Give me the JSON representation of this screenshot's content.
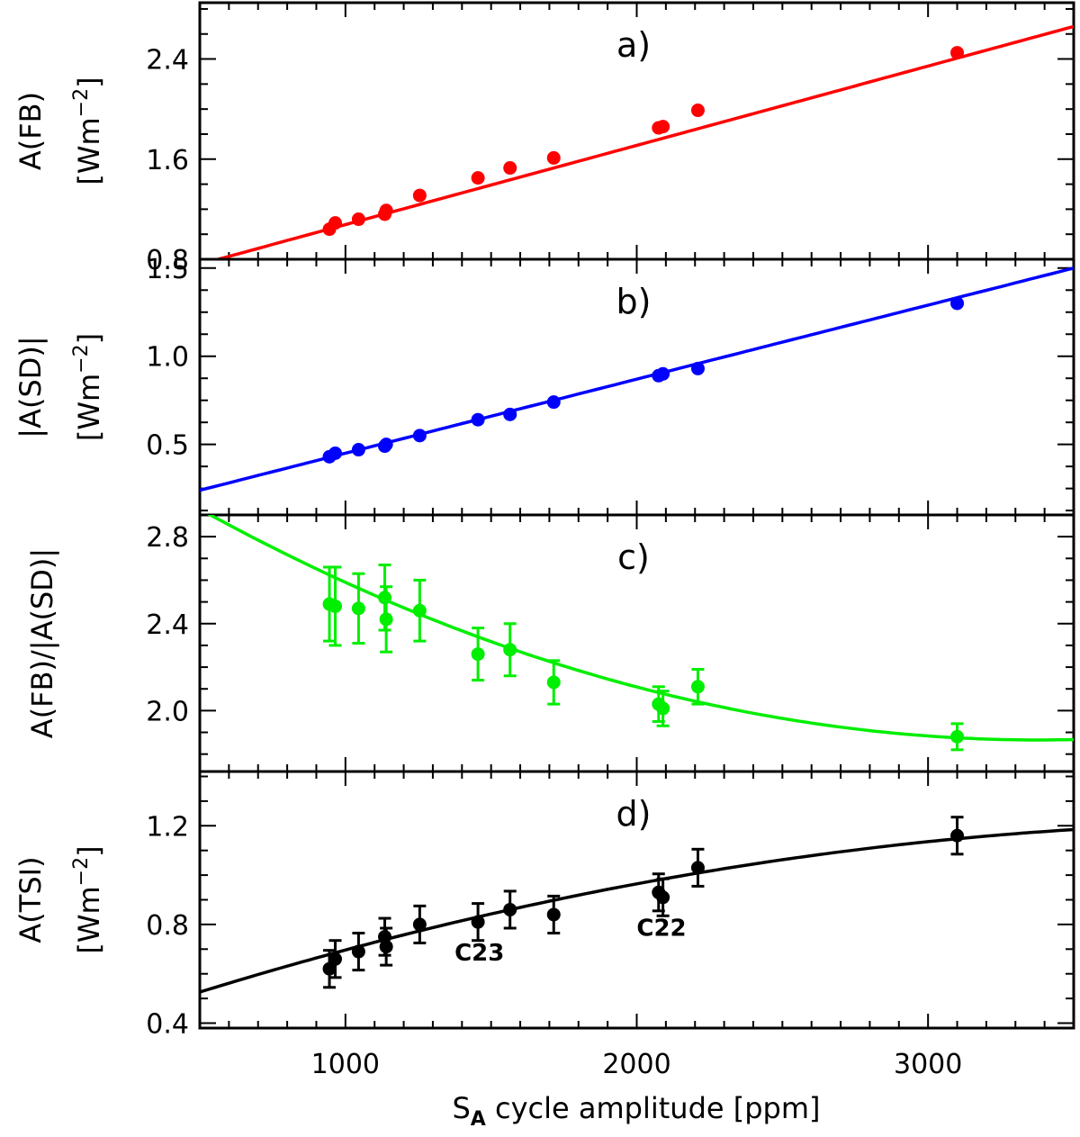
{
  "chart_data": {
    "type": "scatter",
    "xlabel": "S",
    "xlabel_sub": "A",
    "xlabel_rest": " cycle amplitude [ppm]",
    "xlim": [
      500,
      3500
    ],
    "xticks": [
      1000,
      2000,
      3000
    ],
    "panels": [
      {
        "tag": "a)",
        "ylabel": "A(FB)",
        "yunit_prefix": "[Wm",
        "yunit_exp": "−2",
        "yunit_suffix": "]",
        "color": "#ff0000",
        "ylim": [
          0.8,
          2.85
        ],
        "yticks": [
          0.8,
          1.6,
          2.4
        ],
        "ytick_labels": [
          "0.8",
          "1.6",
          "2.4"
        ],
        "fit": {
          "form": "linear",
          "points": [
            [
              500,
              0.76
            ],
            [
              3500,
              2.66
            ]
          ]
        },
        "points": [
          {
            "x": 945,
            "y": 1.04
          },
          {
            "x": 965,
            "y": 1.09
          },
          {
            "x": 1045,
            "y": 1.12
          },
          {
            "x": 1135,
            "y": 1.16
          },
          {
            "x": 1140,
            "y": 1.19
          },
          {
            "x": 1255,
            "y": 1.31
          },
          {
            "x": 1455,
            "y": 1.45
          },
          {
            "x": 1565,
            "y": 1.53
          },
          {
            "x": 1715,
            "y": 1.61
          },
          {
            "x": 2075,
            "y": 1.85
          },
          {
            "x": 2090,
            "y": 1.86
          },
          {
            "x": 2210,
            "y": 1.99
          },
          {
            "x": 3100,
            "y": 2.45
          }
        ]
      },
      {
        "tag": "b)",
        "ylabel": "|A(SD)|",
        "yunit_prefix": "[Wm",
        "yunit_exp": "−2",
        "yunit_suffix": "]",
        "color": "#0000ff",
        "ylim": [
          0.1,
          1.55
        ],
        "yticks": [
          0.5,
          1.0,
          1.5
        ],
        "ytick_labels": [
          "0.5",
          "1.0",
          "1.5"
        ],
        "fit": {
          "form": "linear",
          "points": [
            [
              500,
              0.24
            ],
            [
              3500,
              1.5
            ]
          ]
        },
        "points": [
          {
            "x": 945,
            "y": 0.43
          },
          {
            "x": 965,
            "y": 0.45
          },
          {
            "x": 1045,
            "y": 0.47
          },
          {
            "x": 1135,
            "y": 0.49
          },
          {
            "x": 1140,
            "y": 0.5
          },
          {
            "x": 1255,
            "y": 0.55
          },
          {
            "x": 1455,
            "y": 0.64
          },
          {
            "x": 1565,
            "y": 0.67
          },
          {
            "x": 1715,
            "y": 0.74
          },
          {
            "x": 2075,
            "y": 0.89
          },
          {
            "x": 2090,
            "y": 0.9
          },
          {
            "x": 2210,
            "y": 0.93
          },
          {
            "x": 3100,
            "y": 1.3
          }
        ]
      },
      {
        "tag": "c)",
        "ylabel": "A(FB)/|A(SD)|",
        "color": "#00ee00",
        "ylim": [
          1.72,
          2.9
        ],
        "yticks": [
          2.0,
          2.4,
          2.8
        ],
        "ytick_labels": [
          "2.0",
          "2.4",
          "2.8"
        ],
        "fit": {
          "form": "quadratic",
          "vertex_x": 3380,
          "vertex_y": 1.865,
          "coef": 1.28e-07
        },
        "points": [
          {
            "x": 945,
            "y": 2.49,
            "err": 0.17
          },
          {
            "x": 965,
            "y": 2.48,
            "err": 0.18
          },
          {
            "x": 1045,
            "y": 2.47,
            "err": 0.16
          },
          {
            "x": 1135,
            "y": 2.52,
            "err": 0.15
          },
          {
            "x": 1140,
            "y": 2.42,
            "err": 0.15
          },
          {
            "x": 1255,
            "y": 2.46,
            "err": 0.14
          },
          {
            "x": 1455,
            "y": 2.26,
            "err": 0.12
          },
          {
            "x": 1565,
            "y": 2.28,
            "err": 0.12
          },
          {
            "x": 1715,
            "y": 2.13,
            "err": 0.1
          },
          {
            "x": 2075,
            "y": 2.03,
            "err": 0.08
          },
          {
            "x": 2090,
            "y": 2.01,
            "err": 0.08
          },
          {
            "x": 2210,
            "y": 2.11,
            "err": 0.08
          },
          {
            "x": 3100,
            "y": 1.88,
            "err": 0.06
          }
        ]
      },
      {
        "tag": "d)",
        "ylabel": "A(TSI)",
        "yunit_prefix": "[Wm",
        "yunit_exp": "−2",
        "yunit_suffix": "]",
        "color": "#000000",
        "ylim": [
          0.38,
          1.42
        ],
        "yticks": [
          0.4,
          0.8,
          1.2
        ],
        "ytick_labels": [
          "0.4",
          "0.8",
          "1.2"
        ],
        "fit": {
          "form": "poly2",
          "a": -4.86e-08,
          "b": 0.000414,
          "c": 0.331
        },
        "points": [
          {
            "x": 945,
            "y": 0.62,
            "err": 0.075
          },
          {
            "x": 965,
            "y": 0.66,
            "err": 0.075
          },
          {
            "x": 1045,
            "y": 0.69,
            "err": 0.075
          },
          {
            "x": 1135,
            "y": 0.75,
            "err": 0.075
          },
          {
            "x": 1140,
            "y": 0.71,
            "err": 0.075
          },
          {
            "x": 1255,
            "y": 0.8,
            "err": 0.075
          },
          {
            "x": 1455,
            "y": 0.81,
            "err": 0.075
          },
          {
            "x": 1565,
            "y": 0.86,
            "err": 0.075
          },
          {
            "x": 1715,
            "y": 0.84,
            "err": 0.075
          },
          {
            "x": 2075,
            "y": 0.93,
            "err": 0.075
          },
          {
            "x": 2090,
            "y": 0.91,
            "err": 0.075
          },
          {
            "x": 2210,
            "y": 1.03,
            "err": 0.075
          },
          {
            "x": 3100,
            "y": 1.16,
            "err": 0.075
          }
        ],
        "annotations": [
          {
            "text": "C23",
            "x": 1460,
            "y": 0.69
          },
          {
            "text": "C22",
            "x": 2085,
            "y": 0.79
          }
        ]
      }
    ]
  }
}
